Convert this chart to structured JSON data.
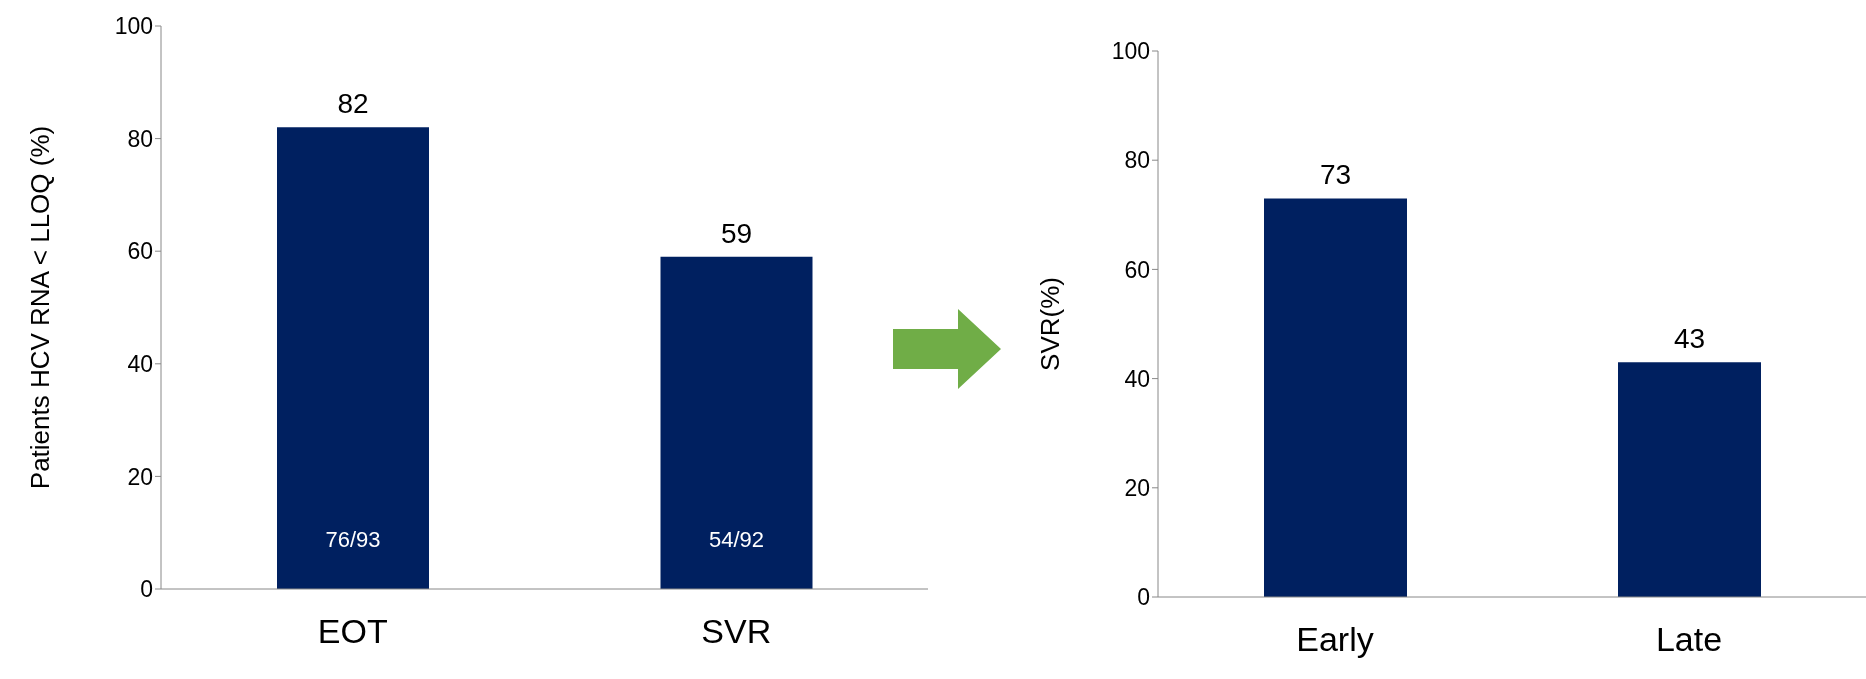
{
  "chart_data": [
    {
      "type": "bar",
      "categories": [
        "EOT",
        "SVR"
      ],
      "values": [
        82,
        59
      ],
      "color": "#002060",
      "ylim": [
        0,
        100
      ],
      "yticks": [
        0,
        20,
        40,
        60,
        80,
        100
      ],
      "ylabel": "Patients HCV RNA < LLOQ (%)",
      "data_labels": true,
      "annotations": [
        "76/93",
        "54/92"
      ]
    },
    {
      "type": "bar",
      "categories": [
        "Early",
        "Late"
      ],
      "values": [
        73,
        43
      ],
      "color": "#002060",
      "ylim": [
        0,
        100
      ],
      "yticks": [
        0,
        20,
        40,
        60,
        80,
        100
      ],
      "ylabel": "SVR(%)",
      "data_labels": true
    }
  ]
}
